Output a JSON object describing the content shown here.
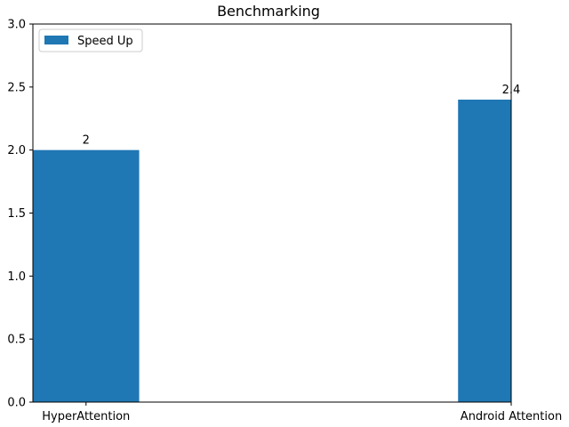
{
  "chart_data": {
    "type": "bar",
    "title": "Benchmarking",
    "xlabel": "",
    "ylabel": "",
    "categories": [
      "HyperAttention",
      "Android Attention"
    ],
    "series": [
      {
        "name": "Speed Up",
        "values": [
          2,
          2.4
        ],
        "color": "#1f77b4"
      }
    ],
    "data_labels": [
      "2",
      "2.4"
    ],
    "y_ticks": [
      0.0,
      0.5,
      1.0,
      1.5,
      2.0,
      2.5,
      3.0
    ],
    "y_tick_labels": [
      "0.0",
      "0.5",
      "1.0",
      "1.5",
      "2.0",
      "2.5",
      "3.0"
    ],
    "ylim": [
      0,
      3
    ],
    "grid": false,
    "legend_position": "top-left"
  }
}
